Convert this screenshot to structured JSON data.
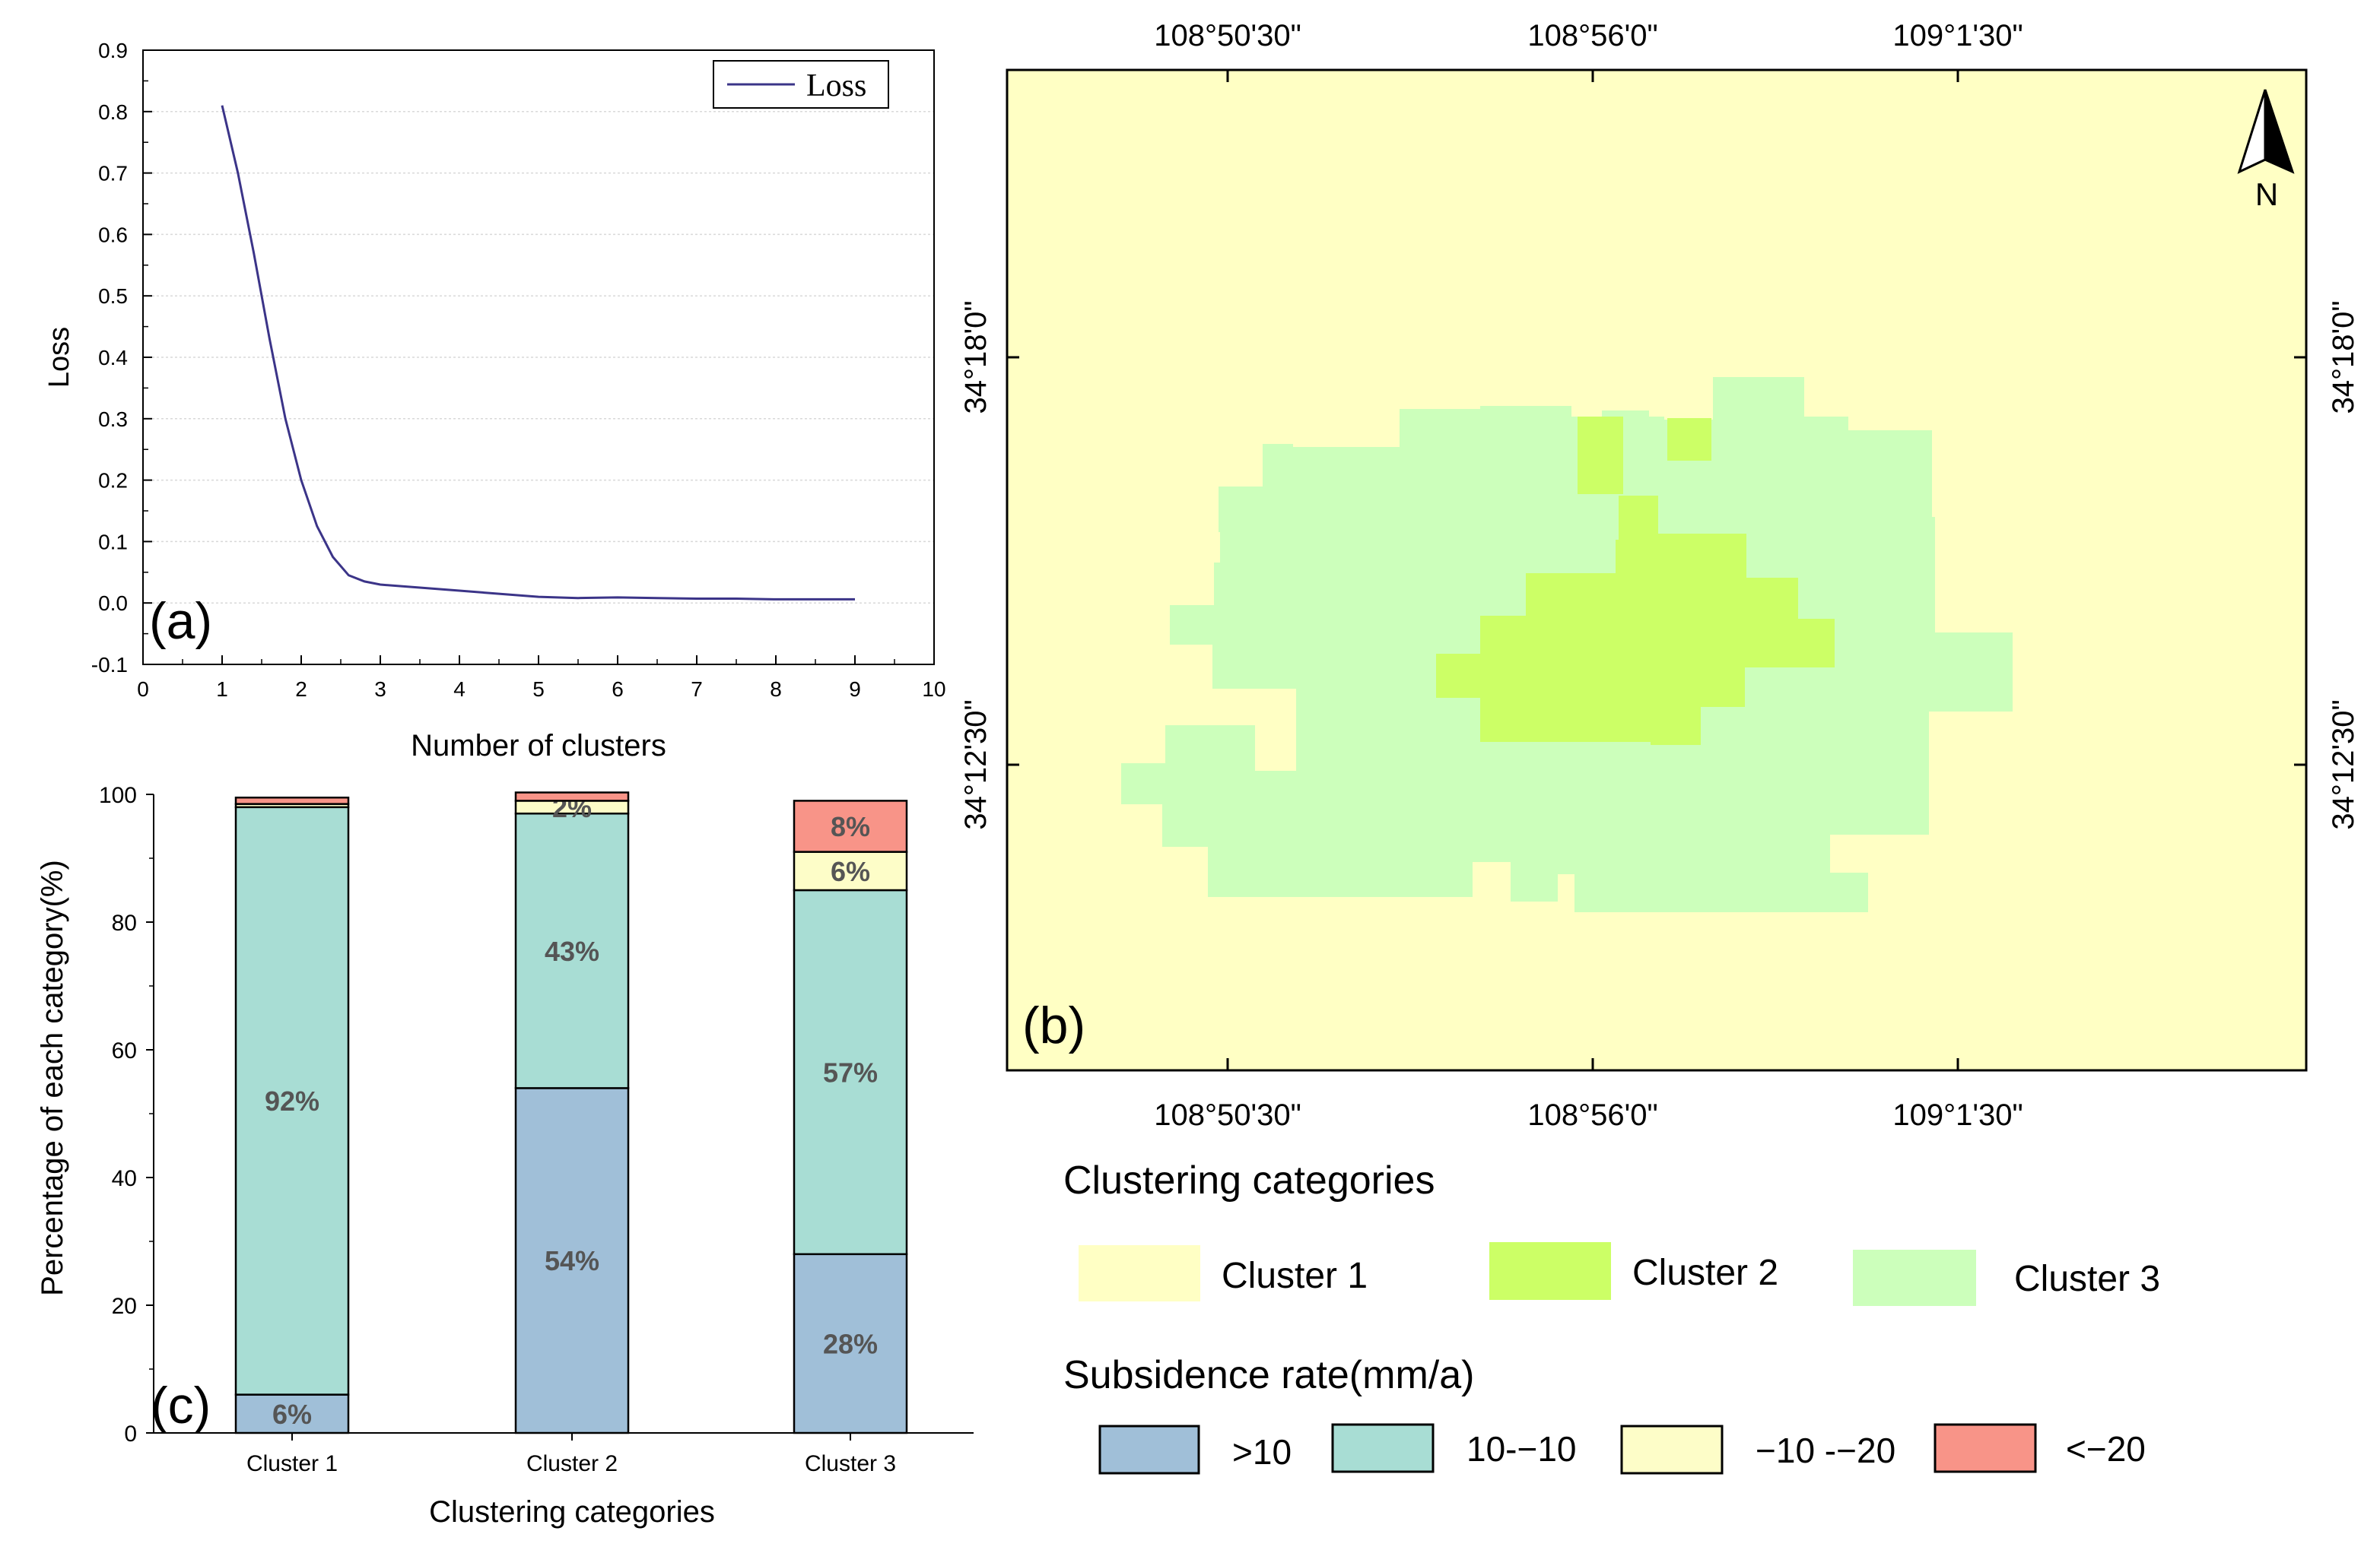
{
  "chart_data": [
    {
      "type": "line",
      "panel_label": "(a)",
      "xlabel": "Number of clusters",
      "ylabel": "Loss",
      "xlim": [
        0,
        10
      ],
      "ylim": [
        -0.1,
        0.9
      ],
      "xticks": [
        "0",
        "1",
        "2",
        "3",
        "4",
        "5",
        "6",
        "7",
        "8",
        "9",
        "10"
      ],
      "yticks": [
        "-0.1",
        "0.0",
        "0.1",
        "0.2",
        "0.3",
        "0.4",
        "0.5",
        "0.6",
        "0.7",
        "0.8",
        "0.9"
      ],
      "legend": "Loss",
      "legend_position": "top-right",
      "grid": true,
      "line_color": "#3b3488",
      "series": [
        {
          "name": "Loss",
          "x": [
            1,
            1.2,
            1.4,
            1.6,
            1.8,
            2.0,
            2.2,
            2.4,
            2.6,
            2.8,
            3.0,
            3.5,
            4.0,
            4.5,
            5.0,
            5.5,
            6.0,
            6.5,
            7.0,
            7.5,
            8.0,
            8.5,
            9.0
          ],
          "values": [
            0.81,
            0.7,
            0.57,
            0.43,
            0.3,
            0.2,
            0.125,
            0.075,
            0.045,
            0.035,
            0.03,
            0.025,
            0.02,
            0.015,
            0.01,
            0.008,
            0.009,
            0.008,
            0.007,
            0.007,
            0.006,
            0.006,
            0.006
          ]
        }
      ]
    },
    {
      "type": "bar",
      "stacked": true,
      "panel_label": "(c)",
      "xlabel": "Clustering categories",
      "ylabel": "Percentage of each category(%)",
      "ylim": [
        0,
        100
      ],
      "yticks": [
        "0",
        "20",
        "40",
        "60",
        "80",
        "100"
      ],
      "categories": [
        "Cluster 1",
        "Cluster 2",
        "Cluster 3"
      ],
      "series": [
        {
          "name": ">10",
          "color": "#a0bfd8",
          "values": [
            6,
            54,
            28
          ],
          "labels": [
            "6%",
            "54%",
            "28%"
          ]
        },
        {
          "name": "10--10",
          "color": "#a8ddd4",
          "values": [
            92,
            43,
            57
          ],
          "labels": [
            "92%",
            "43%",
            "57%"
          ]
        },
        {
          "name": "-10 --20",
          "color": "#fdfdc8",
          "values": [
            0.5,
            2,
            6
          ],
          "labels": [
            "",
            "2%",
            "6%"
          ]
        },
        {
          "name": "<-20",
          "color": "#f89488",
          "values": [
            1,
            1.3,
            8
          ],
          "labels": [
            "",
            "",
            "8%"
          ]
        }
      ]
    }
  ],
  "map": {
    "panel_label": "(b)",
    "top_lon_labels": [
      "108°50'30\"",
      "108°56'0\"",
      "109°1'30\""
    ],
    "bottom_lon_labels": [
      "108°50'30\"",
      "108°56'0\"",
      "109°1'30\""
    ],
    "left_lat_labels": [
      "34°18'0\"",
      "34°12'30\""
    ],
    "right_lat_labels": [
      "34°18'0\"",
      "34°12'30\""
    ],
    "north_label": "N",
    "colors": {
      "cluster1": "#ffffc4",
      "cluster2": "#ccff66",
      "cluster3": "#ccffbb"
    }
  },
  "legend": {
    "clustering_title": "Clustering categories",
    "clusters": [
      {
        "label": "Cluster 1",
        "color": "#ffffc4"
      },
      {
        "label": "Cluster 2",
        "color": "#ccff66"
      },
      {
        "label": "Cluster 3",
        "color": "#ccffbb"
      }
    ],
    "subsidence_title": "Subsidence rate(mm/a)",
    "rates": [
      {
        "label": ">10",
        "color": "#a0bfd8"
      },
      {
        "label": "10-−10",
        "color": "#a8ddd4"
      },
      {
        "label": "−10 -−20",
        "color": "#fdfdc8"
      },
      {
        "label": "<−20",
        "color": "#f89488"
      }
    ]
  }
}
